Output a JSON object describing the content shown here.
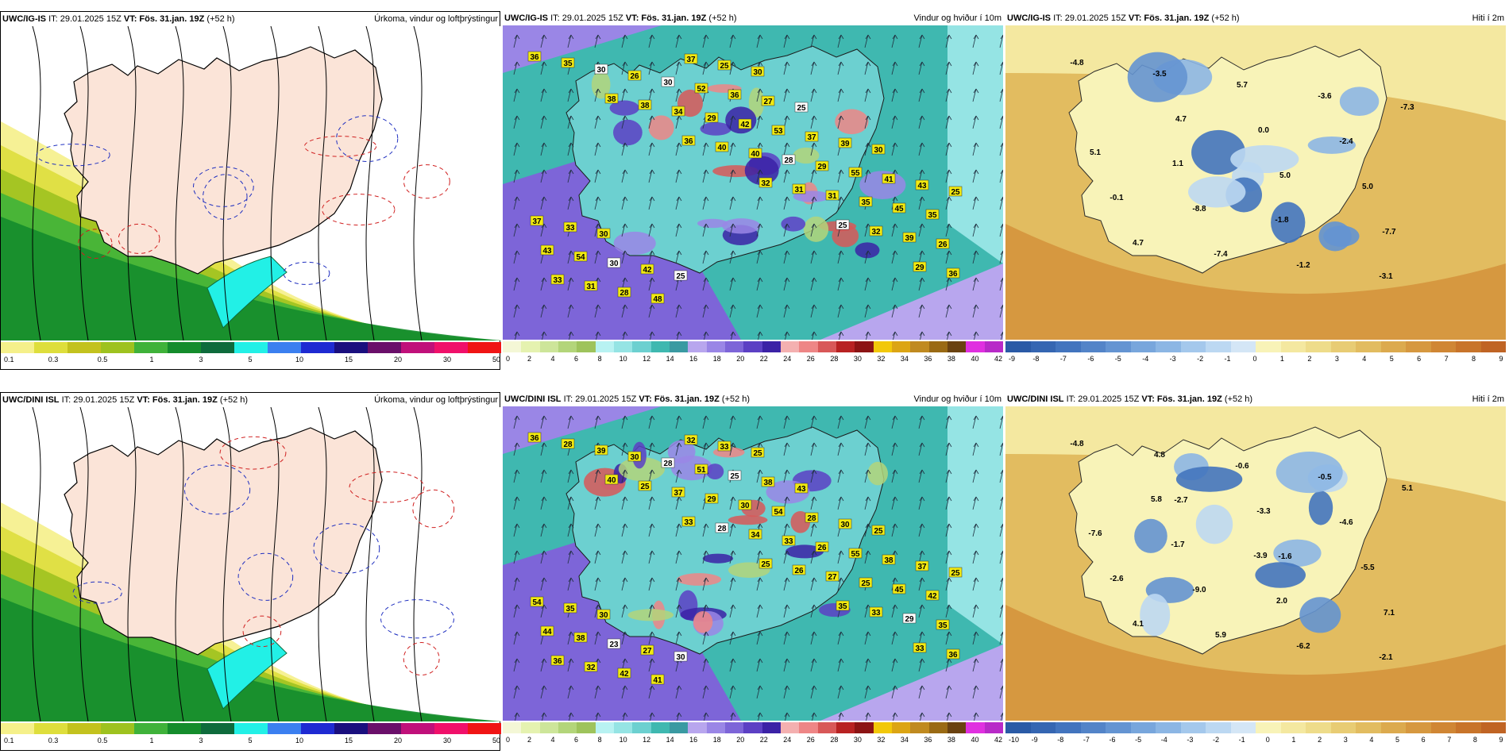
{
  "rows": [
    {
      "precip": {
        "model": "UWC/IG-IS",
        "it": "IT: 29.01.2025 15Z",
        "vt": "VT: Fös. 31.jan. 19Z",
        "lead": "(+52 h)",
        "title": "Úrkoma, vindur og loftþrýstingur"
      },
      "wind": {
        "model": "UWC/IG-IS",
        "it": "IT: 29.01.2025 15Z",
        "vt": "VT: Fös. 31.jan. 19Z",
        "lead": "(+52 h)",
        "title": "Vindur og hviður í 10m",
        "labels": [
          "36",
          "38",
          "36",
          "32",
          "25",
          "29",
          "35",
          "38",
          "40",
          "31",
          "32",
          "36",
          "30",
          "34",
          "40",
          "31",
          "39",
          "33",
          "26",
          "29",
          "28",
          "35",
          "26",
          "31",
          "30",
          "42",
          "29",
          "45",
          "43",
          "28",
          "52",
          "53",
          "55",
          "35",
          "54",
          "48",
          "36",
          "37",
          "41",
          "37",
          "30",
          "37",
          "27",
          "39",
          "43",
          "33",
          "42",
          "25",
          "25",
          "30",
          "25",
          "30",
          "25",
          "30"
        ]
      },
      "temp": {
        "model": "UWC/IG-IS",
        "it": "IT: 29.01.2025 15Z",
        "vt": "VT: Fös. 31.jan. 19Z",
        "lead": "(+52 h)",
        "title": "Hiti í 2m",
        "labels": [
          "-4.8",
          "4.7",
          "5.0",
          "-7.7",
          "-3.5",
          "0.0",
          "5.0",
          "4.7",
          "5.7",
          "-2.4",
          "-0.1",
          "-7.4",
          "-3.6",
          "5.1",
          "-8.8",
          "-1.2",
          "-7.3",
          "1.1",
          "-1.8",
          "-3.1"
        ]
      }
    },
    {
      "precip": {
        "model": "UWC/DINI ISL",
        "it": "IT: 29.01.2025 15Z",
        "vt": "VT: Fös. 31.jan. 19Z",
        "lead": "(+52 h)",
        "title": "Úrkoma, vindur og loftþrýstingur"
      },
      "wind": {
        "model": "UWC/DINI ISL",
        "it": "IT: 29.01.2025 15Z",
        "vt": "VT: Fös. 31.jan. 19Z",
        "lead": "(+52 h)",
        "title": "Vindur og hviður í 10m",
        "labels": [
          "36",
          "40",
          "33",
          "25",
          "35",
          "33",
          "28",
          "25",
          "28",
          "26",
          "33",
          "36",
          "39",
          "37",
          "34",
          "27",
          "29",
          "36",
          "30",
          "29",
          "33",
          "25",
          "35",
          "32",
          "28",
          "30",
          "26",
          "45",
          "44",
          "42",
          "51",
          "54",
          "55",
          "42",
          "38",
          "41",
          "25",
          "28",
          "38",
          "54",
          "23",
          "32",
          "38",
          "30",
          "37",
          "35",
          "27",
          "33",
          "43",
          "25",
          "25",
          "30",
          "30",
          "25"
        ]
      },
      "temp": {
        "model": "UWC/DINI ISL",
        "it": "IT: 29.01.2025 15Z",
        "vt": "VT: Fös. 31.jan. 19Z",
        "lead": "(+52 h)",
        "title": "Hiti í 2m",
        "labels": [
          "-4.8",
          "-2.7",
          "-1.6",
          "7.1",
          "4.8",
          "-3.3",
          "-5.5",
          "4.1",
          "-0.6",
          "-4.6",
          "-2.6",
          "5.9",
          "-0.5",
          "-7.6",
          "-9.0",
          "-6.2",
          "5.1",
          "-1.7",
          "2.0",
          "-2.1",
          "5.8",
          "-3.9"
        ]
      }
    }
  ],
  "scales": {
    "precip": {
      "ticks": [
        "0.1",
        "0.3",
        "0.5",
        "1",
        "3",
        "5",
        "10",
        "15",
        "20",
        "30",
        "50"
      ],
      "colors": [
        "#f5f08a",
        "#dede3c",
        "#c3c21e",
        "#9ec21f",
        "#3fb23a",
        "#148c2c",
        "#0e6b3c",
        "#22f0e6",
        "#3b7ff0",
        "#1e2ad2",
        "#1a0f7e",
        "#6a0f6a",
        "#c0107a",
        "#f0106a",
        "#f01414"
      ]
    },
    "wind": {
      "ticks": [
        "0",
        "2",
        "4",
        "6",
        "8",
        "10",
        "12",
        "14",
        "16",
        "18",
        "20",
        "22",
        "24",
        "26",
        "28",
        "30",
        "32",
        "34",
        "36",
        "38",
        "40",
        "42"
      ],
      "colors": [
        "#f4f7d6",
        "#e5f2b0",
        "#cde59a",
        "#b3d57a",
        "#9ec35c",
        "#b8f2f2",
        "#95e4e4",
        "#6cd0d0",
        "#3fb8b0",
        "#3a9aa2",
        "#b8a6ee",
        "#9a86e6",
        "#7d65d8",
        "#5c40c4",
        "#3b22a6",
        "#f4b0b0",
        "#ee8686",
        "#d85858",
        "#b82222",
        "#8c1414",
        "#f2c80a",
        "#dca514",
        "#c08a20",
        "#9a6a14",
        "#6a4210",
        "#e030e0",
        "#b82ac8"
      ]
    },
    "temp": {
      "ticks_top": [
        "-9",
        "-8",
        "-7",
        "-6",
        "-5",
        "-4",
        "-3",
        "-2",
        "-1",
        "0",
        "1",
        "2",
        "3",
        "4",
        "5",
        "6",
        "7",
        "8",
        "9"
      ],
      "ticks_bottom": [
        "-10",
        "-9",
        "-8",
        "-7",
        "-6",
        "-5",
        "-4",
        "-3",
        "-2",
        "-1",
        "0",
        "1",
        "2",
        "3",
        "4",
        "5",
        "6",
        "7",
        "8",
        "9"
      ],
      "colors": [
        "#2a5aa6",
        "#3566b2",
        "#4274be",
        "#5384c8",
        "#6494d2",
        "#78a6dc",
        "#8cb6e4",
        "#a4c8ec",
        "#bcd8f2",
        "#d4e6f6",
        "#f8f3b8",
        "#f4e8a0",
        "#eedc8a",
        "#e8cc74",
        "#e2bc60",
        "#dcaa4e",
        "#d69840",
        "#d08634",
        "#c8742a",
        "#c06424"
      ]
    }
  }
}
